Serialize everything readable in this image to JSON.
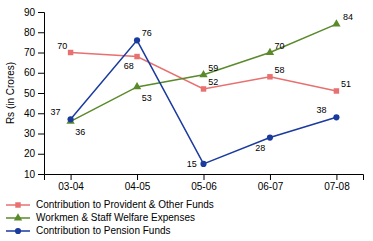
{
  "chart_data": {
    "type": "line",
    "categories": [
      "03-04",
      "04-05",
      "05-06",
      "06-07",
      "07-08"
    ],
    "series": [
      {
        "name": "Contribution to Provident & Other Funds",
        "color": "#e87070",
        "marker": "square",
        "values": [
          70,
          68,
          52,
          58,
          51
        ]
      },
      {
        "name": "Workmen & Staff Welfare Expenses",
        "color": "#5a8a2a",
        "marker": "triangle",
        "values": [
          36,
          53,
          59,
          70,
          84
        ]
      },
      {
        "name": "Contribution to Pension Funds",
        "color": "#1a3a9e",
        "marker": "circle",
        "values": [
          37,
          76,
          15,
          28,
          38
        ]
      }
    ],
    "ylabel": "Rs (in Crores)",
    "ylim": [
      10,
      90
    ],
    "yticks": [
      10,
      20,
      30,
      40,
      50,
      60,
      70,
      80,
      90
    ],
    "grid": false,
    "legend": "bottom",
    "data_labels": true
  }
}
